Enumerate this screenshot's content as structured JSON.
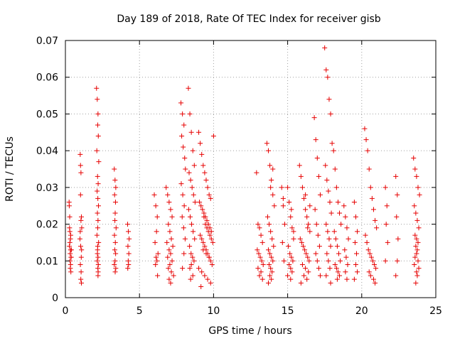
{
  "chart_data": {
    "type": "scatter",
    "title": "Day 189 of 2018, Rate Of TEC Index for receiver gisb",
    "xlabel": "GPS time / hours",
    "ylabel": "ROTI / TECUs",
    "xlim": [
      0,
      25
    ],
    "ylim": [
      0,
      0.07
    ],
    "xticks": [
      0,
      5,
      10,
      15,
      20,
      25
    ],
    "xtick_labels": [
      "0",
      "5",
      "10",
      "15",
      "20",
      "25"
    ],
    "yticks": [
      0,
      0.01,
      0.02,
      0.03,
      0.04,
      0.05,
      0.06,
      0.07
    ],
    "ytick_labels": [
      "0",
      "0.01",
      "0.02",
      "0.03",
      "0.04",
      "0.05",
      "0.06",
      "0.07"
    ],
    "grid": true,
    "marker": "+",
    "color": "#e60000",
    "series": [
      {
        "name": "ROTI",
        "x": [
          0.25,
          0.28,
          0.3,
          0.32,
          0.35,
          0.38,
          0.4,
          0.33,
          0.27,
          0.36,
          0.31,
          0.29,
          0.37,
          0.34,
          0.26,
          0.39,
          0.3,
          0.35,
          1.0,
          1.05,
          1.02,
          1.08,
          1.1,
          0.98,
          1.03,
          1.07,
          1.01,
          1.06,
          1.04,
          1.09,
          1.0,
          1.05,
          1.02,
          1.08,
          2.1,
          2.15,
          2.2,
          2.18,
          2.22,
          2.12,
          2.25,
          2.17,
          2.21,
          2.14,
          2.19,
          2.23,
          2.16,
          2.2,
          2.18,
          2.13,
          2.24,
          2.17,
          2.2,
          2.15,
          2.22,
          2.19,
          2.21,
          2.16,
          2.18,
          2.2,
          3.3,
          3.35,
          3.4,
          3.32,
          3.38,
          3.36,
          3.34,
          3.42,
          3.31,
          3.37,
          3.33,
          3.39,
          3.35,
          3.3,
          3.4,
          3.36,
          4.2,
          4.25,
          4.3,
          4.22,
          4.28,
          4.24,
          4.26,
          4.21,
          6.0,
          6.1,
          6.2,
          6.15,
          6.05,
          6.25,
          6.12,
          6.18,
          6.08,
          6.22,
          6.8,
          6.9,
          7.0,
          7.1,
          7.2,
          6.95,
          7.05,
          7.15,
          6.85,
          7.25,
          7.0,
          7.1,
          6.9,
          7.2,
          7.05,
          6.95,
          7.15,
          7.3,
          7.0,
          7.1,
          7.8,
          7.9,
          8.0,
          7.85,
          7.95,
          8.05,
          8.1,
          7.82,
          7.92,
          8.02,
          7.88,
          7.98,
          8.08,
          8.0,
          7.9,
          8.3,
          8.4,
          8.5,
          8.6,
          8.7,
          8.35,
          8.45,
          8.55,
          8.65,
          8.75,
          8.32,
          8.42,
          8.52,
          8.62,
          8.72,
          8.38,
          8.48,
          8.58,
          8.68,
          8.5,
          8.4,
          8.6,
          8.45,
          9.0,
          9.1,
          9.2,
          9.3,
          9.4,
          9.5,
          9.6,
          9.7,
          9.8,
          9.05,
          9.15,
          9.25,
          9.35,
          9.45,
          9.55,
          9.65,
          9.75,
          9.85,
          9.1,
          9.2,
          9.3,
          9.4,
          9.5,
          9.6,
          9.7,
          9.8,
          9.9,
          9.0,
          9.2,
          9.4,
          9.6,
          9.8,
          9.15,
          9.35,
          9.55,
          9.75,
          9.95,
          10.0,
          9.3,
          9.5,
          9.7,
          9.45,
          9.65,
          9.85,
          12.9,
          13.0,
          13.1,
          13.2,
          13.3,
          12.95,
          13.05,
          13.15,
          13.25,
          13.35,
          13.0,
          13.2,
          13.1,
          13.3,
          13.6,
          13.7,
          13.8,
          13.9,
          14.0,
          14.1,
          13.65,
          13.75,
          13.85,
          13.95,
          14.05,
          13.7,
          13.8,
          13.9,
          14.0,
          13.75,
          13.85,
          13.95,
          13.8,
          13.9,
          13.7,
          14.0,
          13.85,
          14.6,
          14.7,
          14.8,
          14.65,
          14.75,
          14.7,
          15.0,
          15.1,
          15.2,
          15.3,
          15.4,
          15.05,
          15.15,
          15.25,
          15.35,
          15.1,
          15.2,
          15.3,
          15.0,
          15.2,
          15.4,
          15.25,
          15.8,
          15.9,
          16.0,
          16.1,
          16.2,
          16.3,
          16.4,
          16.5,
          15.85,
          15.95,
          16.05,
          16.15,
          16.25,
          16.35,
          16.45,
          16.0,
          16.2,
          16.4,
          16.1,
          16.3,
          15.9,
          16.5,
          16.2,
          16.35,
          16.8,
          16.9,
          17.0,
          17.1,
          17.2,
          16.85,
          16.95,
          17.05,
          17.15,
          16.9,
          17.0,
          17.1,
          17.2,
          17.5,
          17.6,
          17.7,
          17.8,
          17.9,
          18.0,
          17.55,
          17.65,
          17.75,
          17.85,
          17.95,
          17.6,
          17.7,
          17.8,
          17.9,
          17.65,
          17.75,
          17.85,
          17.6,
          17.9,
          18.1,
          18.2,
          18.3,
          18.4,
          18.5,
          18.6,
          18.15,
          18.25,
          18.35,
          18.45,
          18.55,
          18.2,
          18.3,
          18.4,
          18.5,
          18.35,
          18.8,
          18.9,
          19.0,
          19.1,
          18.85,
          18.95,
          19.05,
          18.9,
          19.0,
          19.5,
          19.6,
          19.7,
          19.55,
          19.65,
          19.6,
          19.7,
          19.5,
          20.2,
          20.3,
          20.4,
          20.5,
          20.6,
          20.7,
          20.8,
          20.9,
          21.0,
          20.25,
          20.35,
          20.45,
          20.55,
          20.65,
          20.75,
          20.85,
          20.95,
          20.5,
          20.6,
          20.8,
          20.9,
          21.6,
          21.7,
          21.65,
          21.75,
          21.6,
          22.3,
          22.4,
          22.35,
          22.45,
          22.4,
          22.3,
          23.5,
          23.6,
          23.7,
          23.8,
          23.9,
          23.55,
          23.65,
          23.75,
          23.85,
          23.6,
          23.7,
          23.8,
          23.65,
          23.75,
          23.7,
          23.6,
          23.8,
          23.55,
          23.85,
          23.7,
          23.75,
          23.65
        ],
        "y": [
          0.026,
          0.019,
          0.015,
          0.012,
          0.009,
          0.011,
          0.013,
          0.008,
          0.014,
          0.017,
          0.01,
          0.022,
          0.007,
          0.016,
          0.025,
          0.011,
          0.018,
          0.013,
          0.039,
          0.034,
          0.028,
          0.022,
          0.019,
          0.016,
          0.014,
          0.011,
          0.009,
          0.007,
          0.005,
          0.013,
          0.018,
          0.021,
          0.036,
          0.004,
          0.057,
          0.054,
          0.05,
          0.047,
          0.044,
          0.04,
          0.037,
          0.033,
          0.031,
          0.029,
          0.027,
          0.025,
          0.023,
          0.021,
          0.019,
          0.017,
          0.015,
          0.013,
          0.011,
          0.01,
          0.009,
          0.008,
          0.007,
          0.012,
          0.014,
          0.006,
          0.035,
          0.032,
          0.03,
          0.028,
          0.026,
          0.023,
          0.021,
          0.019,
          0.017,
          0.015,
          0.013,
          0.012,
          0.01,
          0.009,
          0.008,
          0.007,
          0.02,
          0.018,
          0.016,
          0.014,
          0.012,
          0.01,
          0.009,
          0.008,
          0.028,
          0.025,
          0.022,
          0.018,
          0.015,
          0.012,
          0.011,
          0.01,
          0.009,
          0.006,
          0.03,
          0.028,
          0.026,
          0.024,
          0.022,
          0.02,
          0.018,
          0.016,
          0.015,
          0.014,
          0.013,
          0.012,
          0.011,
          0.01,
          0.009,
          0.008,
          0.007,
          0.006,
          0.005,
          0.004,
          0.053,
          0.05,
          0.047,
          0.044,
          0.041,
          0.038,
          0.035,
          0.031,
          0.028,
          0.025,
          0.022,
          0.019,
          0.016,
          0.012,
          0.008,
          0.057,
          0.05,
          0.045,
          0.04,
          0.036,
          0.034,
          0.032,
          0.03,
          0.028,
          0.026,
          0.024,
          0.022,
          0.02,
          0.018,
          0.016,
          0.014,
          0.012,
          0.011,
          0.01,
          0.009,
          0.008,
          0.006,
          0.005,
          0.045,
          0.042,
          0.039,
          0.036,
          0.034,
          0.032,
          0.03,
          0.028,
          0.027,
          0.026,
          0.025,
          0.024,
          0.023,
          0.022,
          0.021,
          0.02,
          0.019,
          0.018,
          0.017,
          0.016,
          0.015,
          0.014,
          0.013,
          0.012,
          0.011,
          0.01,
          0.009,
          0.008,
          0.007,
          0.006,
          0.005,
          0.004,
          0.003,
          0.022,
          0.019,
          0.017,
          0.015,
          0.044,
          0.013,
          0.012,
          0.011,
          0.02,
          0.018,
          0.016,
          0.034,
          0.02,
          0.019,
          0.017,
          0.015,
          0.013,
          0.012,
          0.011,
          0.01,
          0.009,
          0.008,
          0.007,
          0.006,
          0.005,
          0.042,
          0.04,
          0.036,
          0.032,
          0.028,
          0.025,
          0.022,
          0.02,
          0.018,
          0.016,
          0.014,
          0.013,
          0.012,
          0.011,
          0.01,
          0.009,
          0.008,
          0.007,
          0.006,
          0.005,
          0.004,
          0.035,
          0.03,
          0.03,
          0.025,
          0.02,
          0.015,
          0.01,
          0.027,
          0.03,
          0.026,
          0.022,
          0.019,
          0.016,
          0.014,
          0.012,
          0.011,
          0.01,
          0.009,
          0.008,
          0.007,
          0.006,
          0.005,
          0.018,
          0.024,
          0.036,
          0.033,
          0.03,
          0.027,
          0.024,
          0.022,
          0.02,
          0.018,
          0.016,
          0.015,
          0.014,
          0.013,
          0.012,
          0.011,
          0.01,
          0.009,
          0.008,
          0.007,
          0.006,
          0.005,
          0.004,
          0.025,
          0.028,
          0.019,
          0.049,
          0.043,
          0.038,
          0.033,
          0.028,
          0.024,
          0.02,
          0.017,
          0.014,
          0.012,
          0.01,
          0.008,
          0.006,
          0.068,
          0.062,
          0.06,
          0.054,
          0.05,
          0.042,
          0.036,
          0.032,
          0.029,
          0.026,
          0.023,
          0.02,
          0.018,
          0.016,
          0.014,
          0.012,
          0.01,
          0.008,
          0.006,
          0.004,
          0.04,
          0.035,
          0.03,
          0.026,
          0.023,
          0.02,
          0.018,
          0.016,
          0.014,
          0.012,
          0.01,
          0.009,
          0.008,
          0.007,
          0.006,
          0.005,
          0.025,
          0.022,
          0.019,
          0.016,
          0.013,
          0.011,
          0.009,
          0.007,
          0.005,
          0.026,
          0.022,
          0.018,
          0.015,
          0.012,
          0.009,
          0.007,
          0.005,
          0.046,
          0.043,
          0.04,
          0.035,
          0.03,
          0.027,
          0.024,
          0.021,
          0.019,
          0.017,
          0.015,
          0.013,
          0.012,
          0.011,
          0.01,
          0.009,
          0.008,
          0.007,
          0.006,
          0.005,
          0.004,
          0.03,
          0.025,
          0.02,
          0.015,
          0.01,
          0.033,
          0.028,
          0.022,
          0.016,
          0.01,
          0.006,
          0.038,
          0.035,
          0.033,
          0.03,
          0.028,
          0.025,
          0.023,
          0.021,
          0.019,
          0.017,
          0.016,
          0.015,
          0.014,
          0.013,
          0.012,
          0.011,
          0.01,
          0.009,
          0.008,
          0.007,
          0.006,
          0.004
        ]
      }
    ]
  }
}
